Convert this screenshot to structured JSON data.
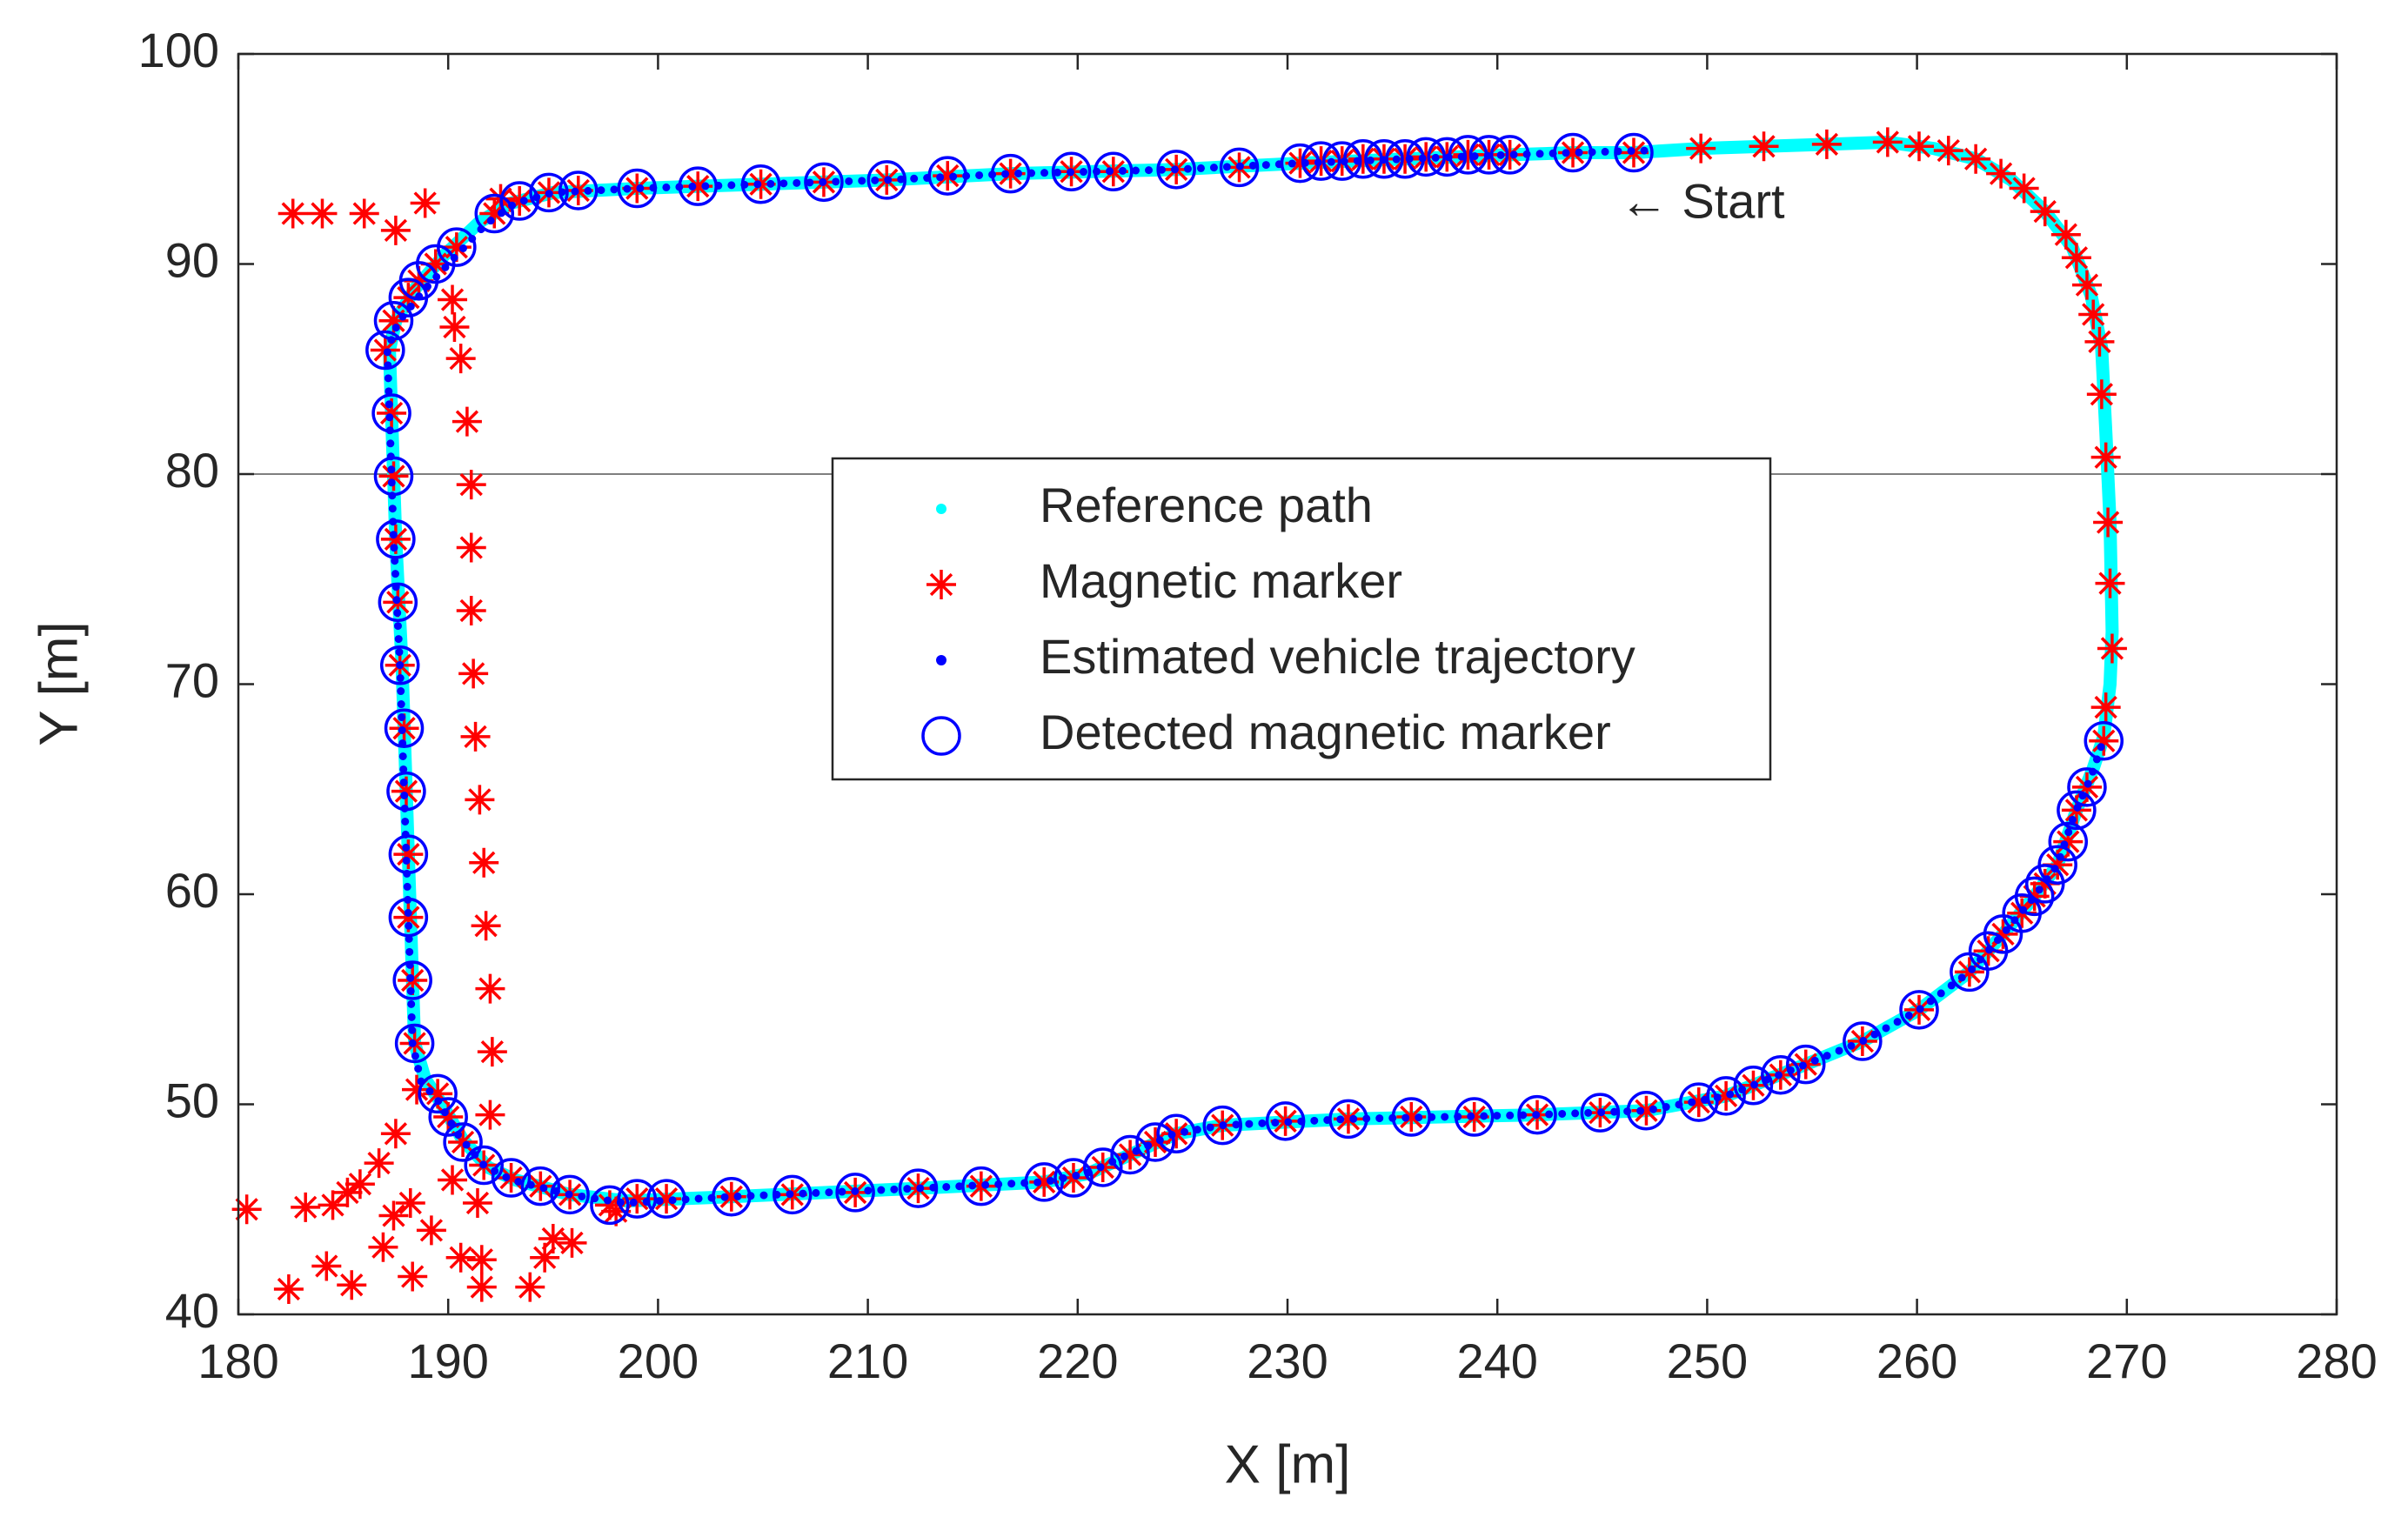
{
  "chart_data": {
    "type": "scatter",
    "xlabel": "X [m]",
    "ylabel": "Y [m]",
    "xlim": [
      180,
      280
    ],
    "xticks": [
      180,
      190,
      200,
      210,
      220,
      230,
      240,
      250,
      260,
      270,
      280
    ],
    "ylim": [
      40,
      100
    ],
    "yticks": [
      40,
      50,
      60,
      70,
      80,
      90,
      100
    ],
    "hlines": [
      80
    ],
    "legend": "center",
    "annotations": [
      {
        "text": "← Start",
        "x": 245,
        "y": 92.8
      }
    ],
    "series": [
      {
        "name": "Reference path",
        "color": "#00ffff",
        "style": "line",
        "x": [
          258.6,
          255.7,
          252.7,
          249.7,
          246.5,
          243.6,
          240.6,
          235.6,
          230.6,
          224.7,
          216.8,
          210.9,
          204.9,
          199,
          195,
          193,
          191.5,
          189.8,
          188.4,
          187.5,
          187.2,
          187.3,
          187.5,
          187.8,
          188,
          188.2,
          188.4,
          188.9,
          189.7,
          190.7,
          191.9,
          193.2,
          195.8,
          198.5,
          203.5,
          212.4,
          218.4,
          220.5,
          222.5,
          224.7,
          226.9,
          232.9,
          241.9,
          247.1,
          250.9,
          254.7,
          257.4,
          260.1,
          262.5,
          264.1,
          265.6,
          266.7,
          267.6,
          268.4,
          268.9,
          269.2,
          269.3,
          269.2,
          269,
          268.8,
          268.3,
          267.4,
          266.1,
          264.5,
          262.8,
          260.8,
          258.6
        ],
        "y": [
          95.8,
          95.7,
          95.6,
          95.5,
          95.3,
          95.3,
          95.2,
          95.0,
          94.8,
          94.5,
          94.3,
          94.0,
          93.8,
          93.6,
          93.4,
          92.9,
          92.0,
          90.4,
          88.8,
          87.3,
          85.9,
          82.9,
          76.9,
          70.9,
          64.9,
          58.9,
          52.9,
          51.2,
          50,
          48.3,
          47.0,
          46.4,
          45.7,
          45.4,
          45.6,
          46.0,
          46.3,
          46.7,
          47.6,
          48.6,
          49.0,
          49.3,
          49.5,
          49.7,
          50.4,
          51.9,
          53.0,
          54.5,
          56.3,
          58.1,
          59.9,
          61.4,
          64.0,
          66,
          67.5,
          70,
          72.5,
          77.7,
          82,
          86,
          88.5,
          90.8,
          92.5,
          94,
          95.0,
          95.5,
          95.8
        ]
      },
      {
        "name": "Magnetic marker",
        "color": "#ff0000",
        "style": "star",
        "x": [
          246.5,
          243.6,
          240.6,
          239.6,
          238.6,
          237.6,
          236.6,
          235.6,
          234.6,
          233.6,
          232.6,
          231.6,
          230.6,
          227.7,
          224.7,
          221.7,
          219.7,
          216.8,
          213.8,
          210.9,
          207.9,
          204.9,
          201.9,
          199,
          196.2,
          194.8,
          193.4,
          192.2,
          190.4,
          189.4,
          188.6,
          188.1,
          187.4,
          187,
          187.3,
          187.4,
          187.5,
          187.6,
          187.7,
          187.9,
          188,
          188.1,
          188.1,
          188.3,
          188.4,
          189.5,
          190,
          190.7,
          191.7,
          193,
          194.4,
          195.8,
          197.7,
          199,
          200.4,
          203.5,
          206.4,
          209.4,
          212.4,
          215.4,
          218.4,
          219.8,
          221.2,
          222.5,
          223.7,
          224.7,
          226.9,
          229.9,
          232.9,
          235.9,
          238.9,
          241.9,
          244.9,
          247.1,
          249.6,
          250.9,
          252.2,
          253.5,
          254.7,
          257.4,
          260.1,
          262.5,
          263.4,
          264.1,
          265,
          265.6,
          266.1,
          266.7,
          267.2,
          267.6,
          268.1,
          268.9,
          269,
          269.3,
          269.2,
          269.1,
          269,
          268.8,
          268.7,
          268.4,
          268.1,
          267.6,
          267.1,
          266.1,
          265.1,
          264,
          262.8,
          261.5,
          260.1,
          258.6,
          255.7,
          252.7,
          249.7,
          182.6,
          184,
          186,
          187.5,
          188.9,
          192.5,
          190.2,
          190.3,
          190.6,
          190.9,
          191.1,
          191.1,
          191.1,
          191.2,
          191.3,
          191.5,
          191.7,
          191.8,
          192,
          192.1,
          192,
          191.4,
          190.2,
          188.5,
          187.5,
          186.7,
          185.8,
          185.2,
          184.5,
          183.2,
          180.4,
          182.4,
          184.2,
          185.4,
          186.9,
          188.3,
          188.2,
          187.4,
          189.2,
          190.6,
          191.6,
          191.6,
          193.9,
          194.6,
          195,
          195.9,
          198
        ],
        "y": [
          95.3,
          95.3,
          95.2,
          95.2,
          95.2,
          95.1,
          95.1,
          95.0,
          95.0,
          95.0,
          94.9,
          94.9,
          94.8,
          94.6,
          94.5,
          94.4,
          94.4,
          94.3,
          94.2,
          94.0,
          93.9,
          93.8,
          93.7,
          93.6,
          93.5,
          93.4,
          93.0,
          92.4,
          90.8,
          90.0,
          89.2,
          88.4,
          87.3,
          85.9,
          82.9,
          79.9,
          76.9,
          73.9,
          70.9,
          67.9,
          64.9,
          61.9,
          58.9,
          55.9,
          52.9,
          50.5,
          49.4,
          48.2,
          47.1,
          46.5,
          46.1,
          45.7,
          45.2,
          45.5,
          45.5,
          45.6,
          45.7,
          45.8,
          46.0,
          46.1,
          46.3,
          46.5,
          47.0,
          47.6,
          48.2,
          48.6,
          49.0,
          49.2,
          49.3,
          49.4,
          49.4,
          49.5,
          49.6,
          49.7,
          50.1,
          50.4,
          50.9,
          51.4,
          51.9,
          53.0,
          54.5,
          56.3,
          57.3,
          58.1,
          59.1,
          59.9,
          60.5,
          61.4,
          62.5,
          64.0,
          65.1,
          67.3,
          68.9,
          71.7,
          74.8,
          77.7,
          80.8,
          83.8,
          86.3,
          87.6,
          89.0,
          90.3,
          91.4,
          92.5,
          93.6,
          94.3,
          95.0,
          95.4,
          95.6,
          95.8,
          95.7,
          95.6,
          95.5,
          92.4,
          92.4,
          92.4,
          91.6,
          92.9,
          93.1,
          88.3,
          87.0,
          85.5,
          82.5,
          79.5,
          76.5,
          73.5,
          70.5,
          67.5,
          64.5,
          61.5,
          58.5,
          55.5,
          52.5,
          49.5,
          45.3,
          46.4,
          50.7,
          48.6,
          47.2,
          46.2,
          45.8,
          45.2,
          45.1,
          45.0,
          41.2,
          42.3,
          41.4,
          43.2,
          41.8,
          45.3,
          44.7,
          44.0,
          42.7,
          42.6,
          41.3,
          41.3,
          42.7,
          43.6,
          43.4,
          44.9
        ]
      },
      {
        "name": "Estimated vehicle trajectory",
        "color": "#0000ff",
        "style": "dotted",
        "x": [
          247,
          243.6,
          240.6,
          235.6,
          230.6,
          224.7,
          216.8,
          210.9,
          204.9,
          199,
          195,
          193.2,
          191.8,
          190.2,
          188.8,
          187.6,
          187.1,
          187.2,
          187.4,
          187.7,
          187.9,
          188.1,
          188.3,
          188.7,
          189.5,
          190.5,
          191.7,
          193,
          195.8,
          198.4,
          203.5,
          212.4,
          218.4,
          220.4,
          222.4,
          224.6,
          226.9,
          232.9,
          241.9,
          247.1,
          250.9,
          254.7,
          257.4,
          260.1,
          262.5,
          264.1,
          265.6,
          266.7,
          267.5,
          268.3,
          268.9
        ],
        "y": [
          95.4,
          95.3,
          95.2,
          95.0,
          94.8,
          94.5,
          94.3,
          94.0,
          93.8,
          93.6,
          93.4,
          92.9,
          91.9,
          90.2,
          88.7,
          87.2,
          85.9,
          82.9,
          76.9,
          70.9,
          64.9,
          58.9,
          52.9,
          51.1,
          50.2,
          48.5,
          47.1,
          46.4,
          45.7,
          45.3,
          45.6,
          46.0,
          46.3,
          46.7,
          47.6,
          48.6,
          49.0,
          49.3,
          49.5,
          49.7,
          50.4,
          51.9,
          53.0,
          54.5,
          56.3,
          58.1,
          59.9,
          61.4,
          63.8,
          65.6,
          67.4
        ]
      },
      {
        "name": "Detected magnetic marker",
        "color": "#0000ff",
        "style": "circle",
        "x": [
          246.5,
          243.6,
          240.6,
          239.6,
          238.6,
          237.6,
          236.6,
          235.6,
          234.6,
          233.6,
          232.6,
          231.6,
          230.6,
          227.7,
          224.7,
          221.7,
          219.7,
          216.8,
          213.8,
          210.9,
          207.9,
          204.9,
          201.9,
          199,
          196.2,
          194.8,
          193.4,
          192.2,
          190.4,
          189.4,
          188.6,
          188.1,
          187.4,
          187,
          187.3,
          187.4,
          187.5,
          187.6,
          187.7,
          187.9,
          188,
          188.1,
          188.1,
          188.3,
          188.4,
          189.5,
          190,
          190.7,
          191.7,
          193,
          194.4,
          195.8,
          197.7,
          199,
          200.4,
          203.5,
          206.4,
          209.4,
          212.4,
          215.4,
          218.4,
          219.8,
          221.2,
          222.5,
          223.7,
          224.7,
          226.9,
          229.9,
          232.9,
          235.9,
          238.9,
          241.9,
          244.9,
          247.1,
          249.6,
          250.9,
          252.2,
          253.5,
          254.7,
          257.4,
          260.1,
          262.5,
          263.4,
          264.1,
          265,
          265.6,
          266.1,
          266.7,
          267.2,
          267.6,
          268.1,
          268.9
        ],
        "y": [
          95.3,
          95.3,
          95.2,
          95.2,
          95.2,
          95.1,
          95.1,
          95.0,
          95.0,
          95.0,
          94.9,
          94.9,
          94.8,
          94.6,
          94.5,
          94.4,
          94.4,
          94.3,
          94.2,
          94.0,
          93.9,
          93.8,
          93.7,
          93.6,
          93.5,
          93.4,
          93.0,
          92.4,
          90.8,
          90.0,
          89.2,
          88.4,
          87.3,
          85.9,
          82.9,
          79.9,
          76.9,
          73.9,
          70.9,
          67.9,
          64.9,
          61.9,
          58.9,
          55.9,
          52.9,
          50.5,
          49.4,
          48.2,
          47.1,
          46.5,
          46.1,
          45.7,
          45.2,
          45.5,
          45.5,
          45.6,
          45.7,
          45.8,
          46.0,
          46.1,
          46.3,
          46.5,
          47.0,
          47.6,
          48.2,
          48.6,
          49.0,
          49.2,
          49.3,
          49.4,
          49.4,
          49.5,
          49.6,
          49.7,
          50.1,
          50.4,
          50.9,
          51.4,
          51.9,
          53.0,
          54.5,
          56.3,
          57.3,
          58.1,
          59.1,
          59.9,
          60.5,
          61.4,
          62.5,
          64.0,
          65.1,
          67.3
        ]
      }
    ]
  }
}
